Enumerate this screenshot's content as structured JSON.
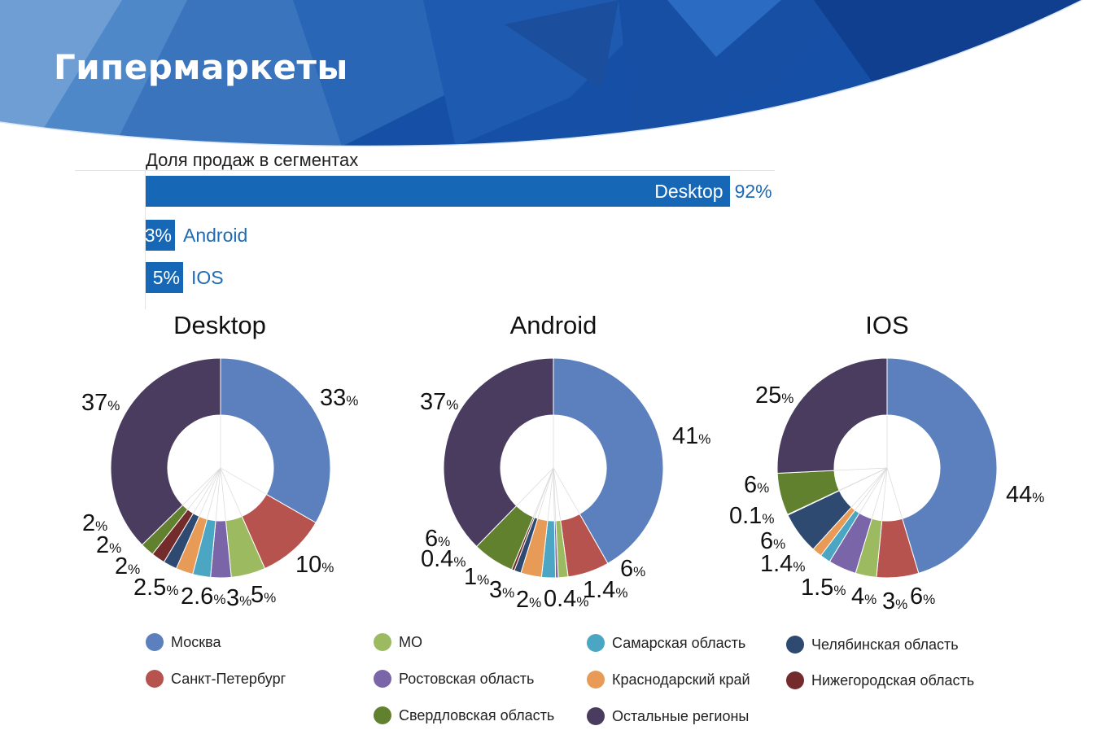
{
  "page": {
    "title": "Гипермаркеты"
  },
  "colors": {
    "bar": "#1767b7",
    "regions": [
      "#5b80bd",
      "#b7534f",
      "#9cbb61",
      "#7b65a9",
      "#4aa6c3",
      "#e89a57",
      "#2e4a70",
      "#742b2b",
      "#62812f",
      "#4a3c5e"
    ]
  },
  "chart_data": [
    {
      "type": "bar",
      "orientation": "horizontal",
      "title": "Доля продаж в сегментах",
      "categories": [
        "Desktop",
        "Android",
        "IOS"
      ],
      "values": [
        92,
        3,
        5
      ],
      "value_labels": [
        "92%",
        "3%",
        "5%"
      ],
      "xlim": [
        0,
        100
      ]
    },
    {
      "type": "pie",
      "donut": true,
      "title": "Desktop",
      "categories": [
        "Москва",
        "Санкт-Петербург",
        "МО",
        "Ростовская область",
        "Самарская область",
        "Краснодарский край",
        "Челябинская область",
        "Нижегородская область",
        "Свердловская область",
        "Остальные регионы"
      ],
      "values": [
        33,
        10,
        5,
        3,
        2.6,
        2.5,
        2,
        2,
        2,
        37
      ],
      "labels": [
        "33",
        "10",
        "5",
        "3",
        "2.6",
        "2.5",
        "2",
        "2",
        "2",
        "37"
      ]
    },
    {
      "type": "pie",
      "donut": true,
      "title": "Android",
      "categories": [
        "Москва",
        "Санкт-Петербург",
        "МО",
        "Ростовская область",
        "Самарская область",
        "Краснодарский край",
        "Челябинская область",
        "Нижегородская область",
        "Свердловская область",
        "Остальные регионы"
      ],
      "values": [
        41,
        6,
        1.4,
        0.4,
        2,
        3,
        1,
        0.4,
        6,
        37
      ],
      "labels": [
        "41",
        "6",
        "1.4",
        "0.4",
        "2",
        "3",
        "1",
        "0.4",
        "6",
        "37"
      ]
    },
    {
      "type": "pie",
      "donut": true,
      "title": "IOS",
      "categories": [
        "Москва",
        "Санкт-Петербург",
        "МО",
        "Ростовская область",
        "Самарская область",
        "Краснодарский край",
        "Челябинская область",
        "Нижегородская область",
        "Свердловская область",
        "Остальные регионы"
      ],
      "values": [
        44,
        6,
        3,
        4,
        1.5,
        1.4,
        6,
        0.1,
        6,
        25
      ],
      "labels": [
        "44",
        "6",
        "3",
        "4",
        "1.5",
        "1.4",
        "6",
        "0.1",
        "6",
        "25"
      ]
    }
  ],
  "legend": {
    "items": [
      "Москва",
      "Санкт-Петербург",
      "МО",
      "Ростовская область",
      "Свердловская область",
      "Самарская область",
      "Краснодарский край",
      "Остальные регионы",
      "Челябинская область",
      "Нижегородская область"
    ]
  },
  "unit": "%"
}
